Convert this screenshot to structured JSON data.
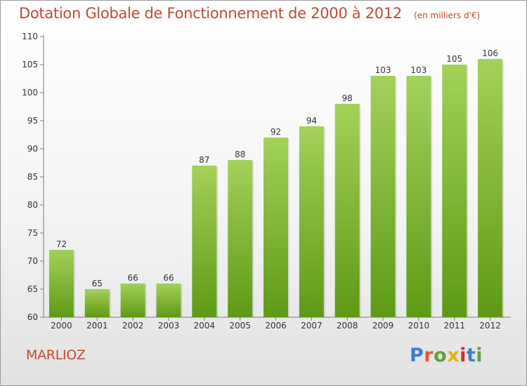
{
  "chart_data": {
    "type": "bar",
    "title": "Dotation Globale de Fonctionnement de 2000 à 2012",
    "unit": "(en milliers d'€)",
    "categories": [
      "2000",
      "2001",
      "2002",
      "2003",
      "2004",
      "2005",
      "2006",
      "2007",
      "2008",
      "2009",
      "2010",
      "2011",
      "2012"
    ],
    "values": [
      72,
      65,
      66,
      66,
      87,
      88,
      92,
      94,
      98,
      103,
      103,
      105,
      106
    ],
    "ylim": [
      60,
      110
    ],
    "yticks": [
      60,
      65,
      70,
      75,
      80,
      85,
      90,
      95,
      100,
      105,
      110
    ],
    "grid": false,
    "bar_color_top": "#a3d15a",
    "bar_color_bottom": "#5e9a15"
  },
  "footer": {
    "commune": "MARLIOZ",
    "logo_text": "Proxiti",
    "logo_colors": [
      "#3f7fc8",
      "#e65a2a",
      "#5aa43a",
      "#e8b400",
      "#d12f2f",
      "#3f7fc8",
      "#5aa43a"
    ]
  }
}
